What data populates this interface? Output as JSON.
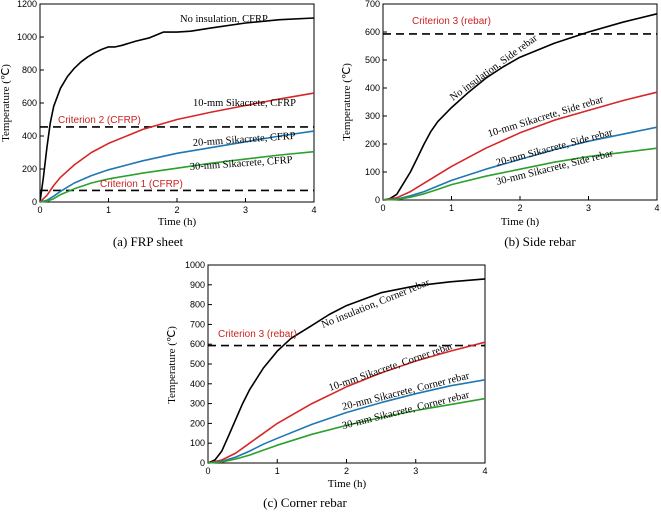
{
  "chart_data": [
    {
      "type": "line",
      "panel": "a",
      "caption": "(a) FRP sheet",
      "xlabel": "Time (h)",
      "ylabel": "Temperature (℃)",
      "xlim": [
        0,
        4
      ],
      "ylim": [
        0,
        1200
      ],
      "xticks": [
        0,
        1,
        2,
        3,
        4
      ],
      "yticks": [
        0,
        200,
        400,
        600,
        800,
        1000,
        1200
      ],
      "series": [
        {
          "name": "No insulation, CFRP",
          "color": "#000000",
          "x": [
            0,
            0.05,
            0.1,
            0.15,
            0.2,
            0.3,
            0.4,
            0.5,
            0.6,
            0.7,
            0.8,
            0.9,
            1.0,
            1.1,
            1.2,
            1.4,
            1.6,
            1.8,
            2.0,
            2.2,
            2.5,
            3.0,
            3.5,
            4.0
          ],
          "y": [
            0,
            150,
            330,
            480,
            580,
            690,
            760,
            810,
            850,
            880,
            905,
            925,
            940,
            940,
            950,
            975,
            995,
            1030,
            1030,
            1035,
            1055,
            1085,
            1105,
            1115
          ]
        },
        {
          "name": "10-mm Sikacrete, CFRP",
          "color": "#d62728",
          "x": [
            0,
            0.1,
            0.2,
            0.3,
            0.5,
            0.75,
            1.0,
            1.5,
            2.0,
            2.5,
            3.0,
            3.5,
            4.0
          ],
          "y": [
            0,
            40,
            100,
            150,
            225,
            300,
            355,
            440,
            500,
            545,
            585,
            625,
            660
          ]
        },
        {
          "name": "20-mm Sikacrete, CFRP",
          "color": "#1f77b4",
          "x": [
            0,
            0.1,
            0.2,
            0.3,
            0.5,
            0.75,
            1.0,
            1.5,
            2.0,
            2.5,
            3.0,
            3.5,
            4.0
          ],
          "y": [
            0,
            10,
            35,
            65,
            115,
            160,
            195,
            250,
            295,
            330,
            365,
            400,
            430
          ]
        },
        {
          "name": "30-mm Sikacrete, CFRP",
          "color": "#2ca02c",
          "x": [
            0,
            0.1,
            0.2,
            0.3,
            0.5,
            0.75,
            1.0,
            1.5,
            2.0,
            2.5,
            3.0,
            3.5,
            4.0
          ],
          "y": [
            0,
            5,
            20,
            45,
            80,
            115,
            140,
            175,
            205,
            235,
            260,
            285,
            305
          ]
        }
      ],
      "criteria": [
        {
          "label": "Criterion 2 (CFRP)",
          "value": 455
        },
        {
          "label": "Criterion 1 (CFRP)",
          "value": 70
        }
      ]
    },
    {
      "type": "line",
      "panel": "b",
      "caption": "(b) Side rebar",
      "xlabel": "Time (h)",
      "ylabel": "Temperature (℃)",
      "xlim": [
        0,
        4
      ],
      "ylim": [
        0,
        700
      ],
      "xticks": [
        0,
        1,
        2,
        3,
        4
      ],
      "yticks": [
        0,
        100,
        200,
        300,
        400,
        500,
        600,
        700
      ],
      "series": [
        {
          "name": "No insulation, Side rebar",
          "color": "#000000",
          "x": [
            0,
            0.1,
            0.2,
            0.3,
            0.4,
            0.5,
            0.6,
            0.7,
            0.8,
            1.0,
            1.25,
            1.5,
            1.75,
            2.0,
            2.5,
            3.0,
            3.5,
            4.0
          ],
          "y": [
            0,
            5,
            20,
            60,
            100,
            150,
            200,
            245,
            280,
            330,
            385,
            435,
            475,
            510,
            560,
            600,
            635,
            665
          ]
        },
        {
          "name": "10-mm Sikacrete, Side rebar",
          "color": "#d62728",
          "x": [
            0,
            0.2,
            0.4,
            0.6,
            0.8,
            1.0,
            1.5,
            2.0,
            2.5,
            3.0,
            3.5,
            4.0
          ],
          "y": [
            0,
            8,
            30,
            60,
            90,
            120,
            185,
            240,
            285,
            320,
            355,
            385
          ]
        },
        {
          "name": "20-mm Sikacrete, Side rebar",
          "color": "#1f77b4",
          "x": [
            0,
            0.2,
            0.4,
            0.6,
            0.8,
            1.0,
            1.5,
            2.0,
            2.5,
            3.0,
            3.5,
            4.0
          ],
          "y": [
            0,
            3,
            15,
            30,
            50,
            70,
            110,
            145,
            180,
            210,
            235,
            260
          ]
        },
        {
          "name": "30-mm Sikacrete, Side rebar",
          "color": "#2ca02c",
          "x": [
            0,
            0.2,
            0.4,
            0.6,
            0.8,
            1.0,
            1.5,
            2.0,
            2.5,
            3.0,
            3.5,
            4.0
          ],
          "y": [
            0,
            2,
            10,
            22,
            38,
            55,
            85,
            110,
            135,
            155,
            170,
            185
          ]
        }
      ],
      "criteria": [
        {
          "label": "Criterion 3 (rebar)",
          "value": 593
        }
      ]
    },
    {
      "type": "line",
      "panel": "c",
      "caption": "(c) Corner rebar",
      "xlabel": "Time (h)",
      "ylabel": "Temperature (℃)",
      "xlim": [
        0,
        4
      ],
      "ylim": [
        0,
        1000
      ],
      "xticks": [
        0,
        1,
        2,
        3,
        4
      ],
      "yticks": [
        0,
        100,
        200,
        300,
        400,
        500,
        600,
        700,
        800,
        900,
        1000
      ],
      "series": [
        {
          "name": "No insulation, Corner rebar",
          "color": "#000000",
          "x": [
            0,
            0.1,
            0.2,
            0.3,
            0.4,
            0.5,
            0.6,
            0.8,
            1.0,
            1.2,
            1.5,
            1.75,
            2.0,
            2.5,
            3.0,
            3.5,
            4.0
          ],
          "y": [
            0,
            15,
            60,
            140,
            220,
            300,
            370,
            480,
            565,
            630,
            695,
            750,
            795,
            860,
            895,
            915,
            930
          ]
        },
        {
          "name": "10-mm Sikacrete, Corner rebar",
          "color": "#d62728",
          "x": [
            0,
            0.2,
            0.4,
            0.6,
            0.8,
            1.0,
            1.5,
            2.0,
            2.5,
            3.0,
            3.5,
            4.0
          ],
          "y": [
            0,
            15,
            50,
            100,
            150,
            200,
            300,
            385,
            455,
            515,
            565,
            610
          ]
        },
        {
          "name": "20-mm Sikacrete, Corner rebar",
          "color": "#1f77b4",
          "x": [
            0,
            0.2,
            0.4,
            0.6,
            0.8,
            1.0,
            1.5,
            2.0,
            2.5,
            3.0,
            3.5,
            4.0
          ],
          "y": [
            0,
            8,
            30,
            60,
            95,
            125,
            195,
            255,
            305,
            350,
            390,
            420
          ]
        },
        {
          "name": "30-mm Sikacrete, Corner rebar",
          "color": "#2ca02c",
          "x": [
            0,
            0.2,
            0.4,
            0.6,
            0.8,
            1.0,
            1.5,
            2.0,
            2.5,
            3.0,
            3.5,
            4.0
          ],
          "y": [
            0,
            5,
            20,
            40,
            65,
            90,
            145,
            190,
            230,
            265,
            295,
            325
          ]
        }
      ],
      "criteria": [
        {
          "label": "Criterion 3 (rebar)",
          "value": 593
        }
      ]
    }
  ]
}
